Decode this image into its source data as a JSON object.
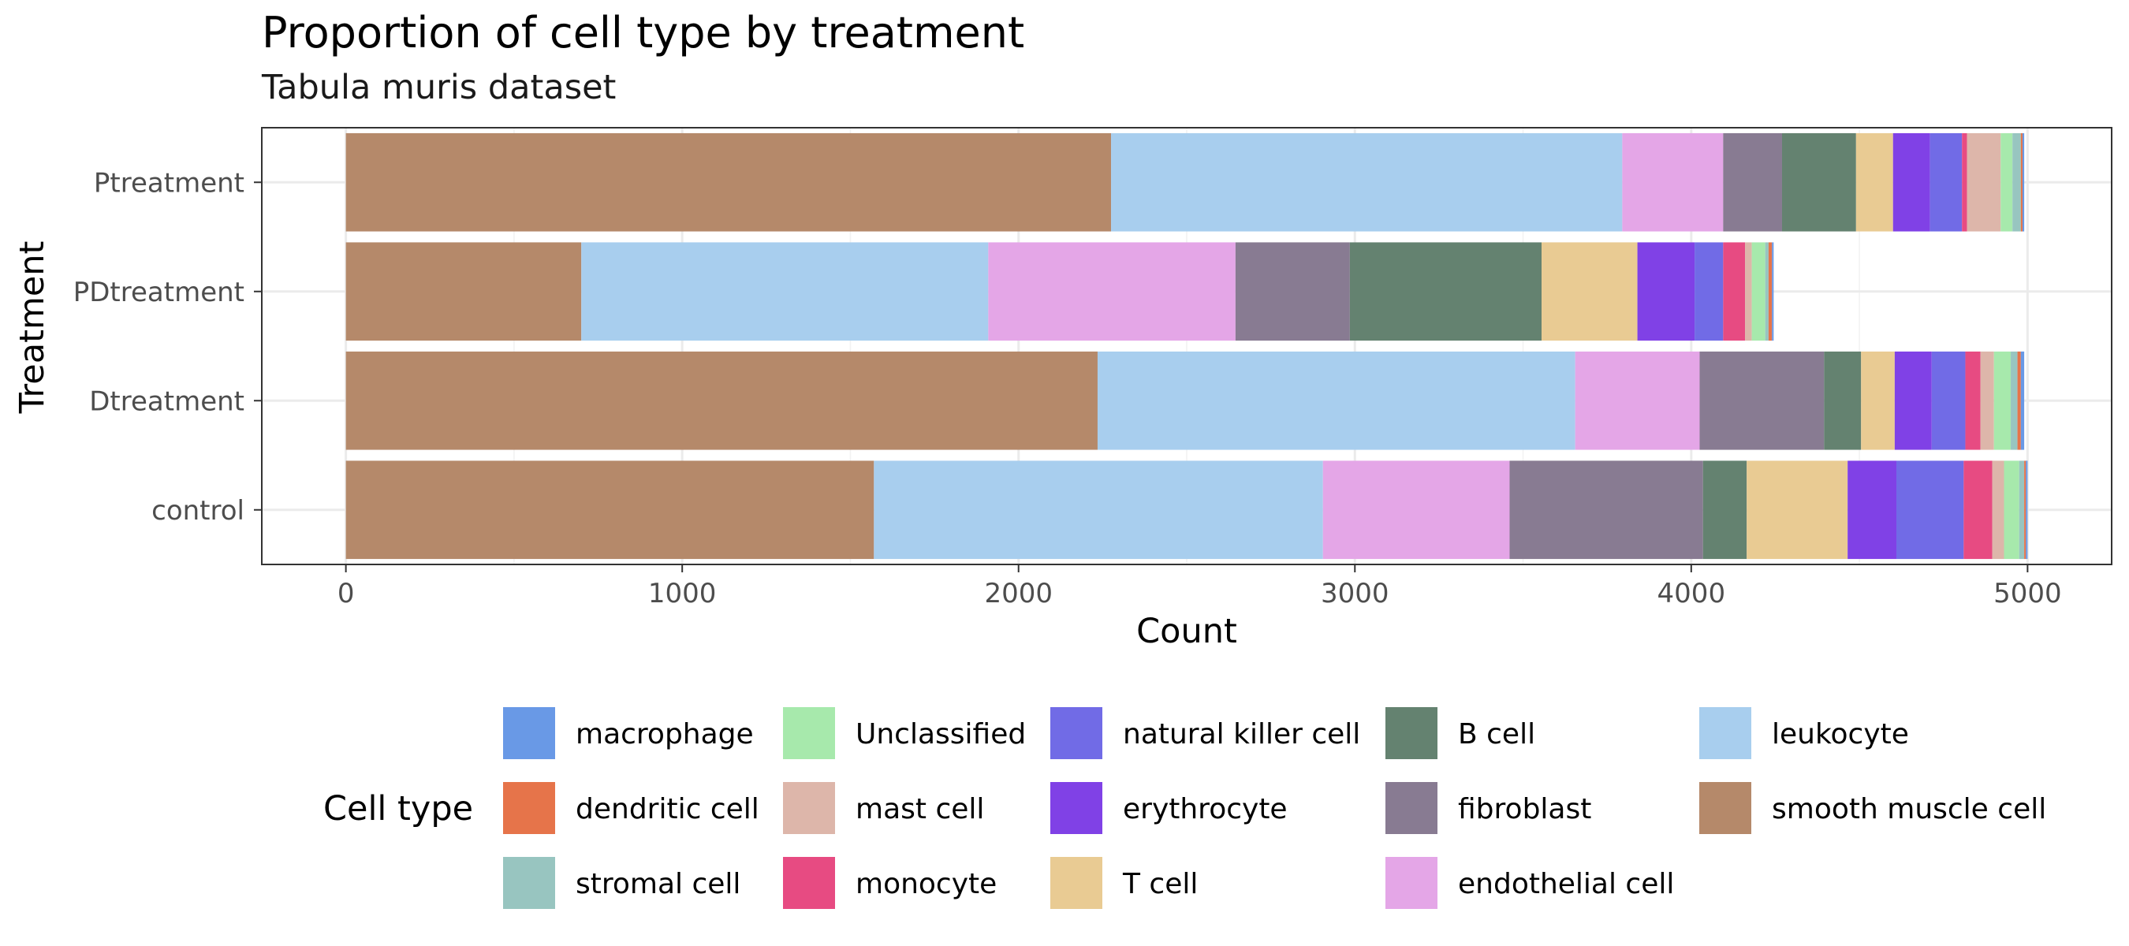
{
  "chart_data": {
    "type": "bar",
    "orientation": "horizontal",
    "stacked": true,
    "title": "Proportion of cell type by treatment",
    "subtitle": "Tabula muris dataset",
    "xlabel": "Count",
    "ylabel": "Treatment",
    "xlim": [
      -250,
      5250
    ],
    "xticks": [
      "0",
      "1000",
      "2000",
      "3000",
      "4000",
      "5000"
    ],
    "grid": true,
    "legend_title": "Cell type",
    "legend_position": "bottom",
    "categories": [
      "control",
      "Dtreatment",
      "PDtreatment",
      "Ptreatment"
    ],
    "series": [
      {
        "name": "smooth muscle cell",
        "color": "#B5896A",
        "values": [
          1570,
          2235,
          700,
          2275
        ]
      },
      {
        "name": "leukocyte",
        "color": "#A8CEEE",
        "values": [
          1335,
          1420,
          1210,
          1520
        ]
      },
      {
        "name": "endothelial cell",
        "color": "#E4A6E7",
        "values": [
          555,
          370,
          735,
          300
        ]
      },
      {
        "name": "fibroblast",
        "color": "#887B92",
        "values": [
          575,
          370,
          340,
          175
        ]
      },
      {
        "name": "B cell",
        "color": "#648270",
        "values": [
          130,
          110,
          570,
          220
        ]
      },
      {
        "name": "T cell",
        "color": "#E9CB93",
        "values": [
          300,
          100,
          285,
          110
        ]
      },
      {
        "name": "erythrocyte",
        "color": "#8041E6",
        "values": [
          145,
          110,
          170,
          110
        ]
      },
      {
        "name": "natural killer cell",
        "color": "#716BE6",
        "values": [
          200,
          100,
          85,
          95
        ]
      },
      {
        "name": "monocyte",
        "color": "#E74B82",
        "values": [
          85,
          45,
          65,
          15
        ]
      },
      {
        "name": "mast cell",
        "color": "#DDB6AA",
        "values": [
          35,
          40,
          20,
          100
        ]
      },
      {
        "name": "Unclassified",
        "color": "#A7E9AC",
        "values": [
          45,
          50,
          40,
          35
        ]
      },
      {
        "name": "stromal cell",
        "color": "#98C5C0",
        "values": [
          15,
          20,
          10,
          25
        ]
      },
      {
        "name": "dendritic cell",
        "color": "#E6744A",
        "values": [
          5,
          10,
          10,
          5
        ]
      },
      {
        "name": "macrophage",
        "color": "#6999E6",
        "values": [
          5,
          10,
          5,
          5
        ]
      }
    ],
    "legend_order": [
      "macrophage",
      "dendritic cell",
      "stromal cell",
      "Unclassified",
      "mast cell",
      "monocyte",
      "natural killer cell",
      "erythrocyte",
      "T cell",
      "B cell",
      "fibroblast",
      "endothelial cell",
      "leukocyte",
      "smooth muscle cell"
    ]
  }
}
